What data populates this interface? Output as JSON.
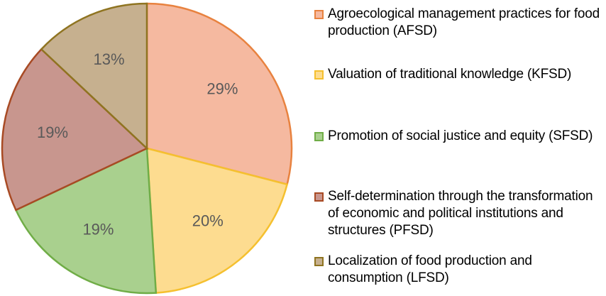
{
  "chart_data": {
    "type": "pie",
    "categories": [
      "Agroecological management practices for food production (AFSD)",
      "Valuation of traditional knowledge (KFSD)",
      "Promotion of social justice and equity (SFSD)",
      "Self-determination through the transformation of economic and political institutions and structures (PFSD)",
      "Localization of food production and consumption (LFSD)"
    ],
    "values": [
      29,
      20,
      19,
      19,
      13
    ],
    "value_labels": [
      "29%",
      "20%",
      "19%",
      "19%",
      "13%"
    ],
    "colors": [
      "#f5b9a0",
      "#fddc90",
      "#a9d08e",
      "#c8968e",
      "#c6b08f"
    ],
    "edge_colors": [
      "#e8823f",
      "#f5c02f",
      "#70ad47",
      "#a84a24",
      "#8f7421"
    ],
    "legend": "right"
  }
}
